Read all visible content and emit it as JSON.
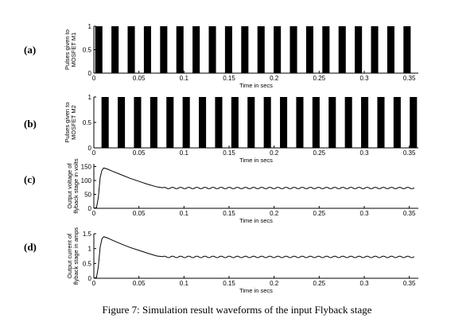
{
  "caption": "Figure 7: Simulation result waveforms of the input Flyback stage",
  "chart_data": [
    {
      "id": "a",
      "panel_label": "(a)",
      "type": "pulse",
      "xlabel": "Time in secs",
      "ylabel": [
        "Pulses given to",
        "MOSFET M1"
      ],
      "xlim": [
        0,
        0.36
      ],
      "ylim": [
        0,
        1
      ],
      "xticks": [
        0,
        0.05,
        0.1,
        0.15,
        0.2,
        0.25,
        0.3,
        0.35
      ],
      "xtick_labels": [
        "0",
        "0.05",
        "0.1",
        "0.15",
        "0.2",
        "0.25",
        "0.3",
        "0.35"
      ],
      "yticks": [
        0,
        0.5,
        1
      ],
      "ytick_labels": [
        "0",
        "0.5",
        "1"
      ],
      "pulses": [
        [
          0.0015,
          0.0095
        ],
        [
          0.0195,
          0.0275
        ],
        [
          0.0375,
          0.0455
        ],
        [
          0.0555,
          0.0635
        ],
        [
          0.0735,
          0.0815
        ],
        [
          0.0915,
          0.0995
        ],
        [
          0.1095,
          0.1175
        ],
        [
          0.1275,
          0.1355
        ],
        [
          0.1455,
          0.1535
        ],
        [
          0.1635,
          0.1715
        ],
        [
          0.1815,
          0.1895
        ],
        [
          0.1995,
          0.2075
        ],
        [
          0.2175,
          0.2255
        ],
        [
          0.2355,
          0.2435
        ],
        [
          0.2535,
          0.2615
        ],
        [
          0.2715,
          0.2795
        ],
        [
          0.2895,
          0.2975
        ],
        [
          0.3075,
          0.3155
        ],
        [
          0.3255,
          0.3335
        ],
        [
          0.3435,
          0.3515
        ]
      ]
    },
    {
      "id": "b",
      "panel_label": "(b)",
      "type": "pulse",
      "xlabel": "Time in secs",
      "ylabel": [
        "Pulses given to",
        "MOSFET M2"
      ],
      "xlim": [
        0,
        0.36
      ],
      "ylim": [
        0,
        1
      ],
      "xticks": [
        0,
        0.05,
        0.1,
        0.15,
        0.2,
        0.25,
        0.3,
        0.35
      ],
      "xtick_labels": [
        "0",
        "0.05",
        "0.1",
        "0.15",
        "0.2",
        "0.25",
        "0.3",
        "0.35"
      ],
      "yticks": [
        0,
        0.5,
        1
      ],
      "ytick_labels": [
        "0",
        "0.5",
        "1"
      ],
      "pulses": [
        [
          0.0085,
          0.0165
        ],
        [
          0.0265,
          0.0345
        ],
        [
          0.0445,
          0.0525
        ],
        [
          0.0625,
          0.0705
        ],
        [
          0.0805,
          0.0885
        ],
        [
          0.0985,
          0.1065
        ],
        [
          0.1165,
          0.1245
        ],
        [
          0.1345,
          0.1425
        ],
        [
          0.1525,
          0.1605
        ],
        [
          0.1705,
          0.1785
        ],
        [
          0.1885,
          0.1965
        ],
        [
          0.2065,
          0.2145
        ],
        [
          0.2245,
          0.2325
        ],
        [
          0.2425,
          0.2505
        ],
        [
          0.2605,
          0.2685
        ],
        [
          0.2785,
          0.2865
        ],
        [
          0.2965,
          0.3045
        ],
        [
          0.3145,
          0.3225
        ],
        [
          0.3325,
          0.3405
        ],
        [
          0.3505,
          0.3585
        ]
      ]
    },
    {
      "id": "c",
      "panel_label": "(c)",
      "type": "line",
      "xlabel": "Time in secs",
      "ylabel": [
        "Output voltage of",
        "flyback stage in volts"
      ],
      "xlim": [
        0,
        0.36
      ],
      "ylim": [
        0,
        160
      ],
      "xticks": [
        0,
        0.05,
        0.1,
        0.15,
        0.2,
        0.25,
        0.3,
        0.35
      ],
      "xtick_labels": [
        "0",
        "0.05",
        "0.1",
        "0.15",
        "0.2",
        "0.25",
        "0.3",
        "0.35"
      ],
      "yticks": [
        0,
        50,
        100,
        150
      ],
      "ytick_labels": [
        "0",
        "50",
        "100",
        "150"
      ],
      "points": [
        [
          0,
          0
        ],
        [
          0.003,
          3
        ],
        [
          0.005,
          40
        ],
        [
          0.007,
          110
        ],
        [
          0.009,
          137
        ],
        [
          0.011,
          145
        ],
        [
          0.015,
          141
        ],
        [
          0.02,
          134
        ],
        [
          0.03,
          121
        ],
        [
          0.04,
          108
        ],
        [
          0.05,
          97
        ],
        [
          0.06,
          86
        ],
        [
          0.07,
          77
        ],
        [
          0.076,
          74
        ]
      ],
      "steady_state": 73,
      "ripple_amplitude": 2.5,
      "ripple_period": 0.009
    },
    {
      "id": "d",
      "panel_label": "(d)",
      "type": "line",
      "xlabel": "Time in secs",
      "ylabel": [
        "Output current of",
        "flyback stage in amps"
      ],
      "xlim": [
        0,
        0.36
      ],
      "ylim": [
        0,
        1.5
      ],
      "xticks": [
        0,
        0.05,
        0.1,
        0.15,
        0.2,
        0.25,
        0.3,
        0.35
      ],
      "xtick_labels": [
        "0",
        "0.05",
        "0.1",
        "0.15",
        "0.2",
        "0.25",
        "0.3",
        "0.35"
      ],
      "yticks": [
        0,
        0.5,
        1,
        1.5
      ],
      "ytick_labels": [
        "0",
        "0.5",
        "1",
        "1.5"
      ],
      "points": [
        [
          0,
          0
        ],
        [
          0.003,
          0.03
        ],
        [
          0.005,
          0.4
        ],
        [
          0.007,
          1.05
        ],
        [
          0.009,
          1.33
        ],
        [
          0.011,
          1.4
        ],
        [
          0.015,
          1.36
        ],
        [
          0.02,
          1.29
        ],
        [
          0.03,
          1.16
        ],
        [
          0.04,
          1.04
        ],
        [
          0.05,
          0.94
        ],
        [
          0.06,
          0.84
        ],
        [
          0.07,
          0.75
        ],
        [
          0.076,
          0.73
        ]
      ],
      "steady_state": 0.72,
      "ripple_amplitude": 0.025,
      "ripple_period": 0.009
    }
  ]
}
